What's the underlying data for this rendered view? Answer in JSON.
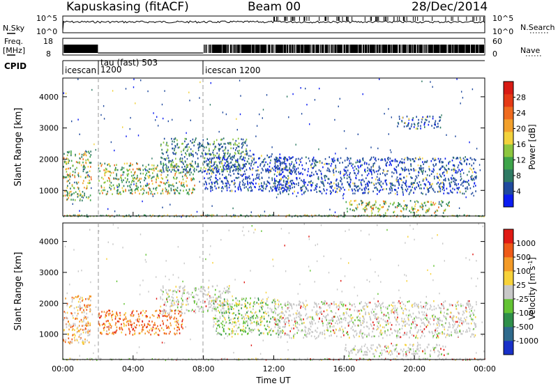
{
  "header": {
    "site": "Kapuskasing (fitACF)",
    "beam": "Beam 00",
    "date": "28/Dec/2014"
  },
  "strips": {
    "nsky_label": "N.Sky",
    "nsky_top": "10^5",
    "nsky_bottom": "10^0",
    "nsearch_label": "N.Search",
    "nsearch_top": "10^5",
    "nsearch_bottom": "10^0",
    "freq_label": "Freq.",
    "freq_unit": "[MHz]",
    "freq_top": "18",
    "freq_bottom": "8",
    "nave_label": "Nave",
    "nave_top": "60",
    "nave_bottom": "0",
    "cpid_label": "CPID",
    "cpid_segments": [
      {
        "label": "icescan",
        "start_h": 0.0
      },
      {
        "label": "1200",
        "start_h": 1.0
      },
      {
        "label": "tau (fast) 503",
        "start_h": 2.0
      },
      {
        "label": "icescan 1200",
        "start_h": 8.0
      }
    ]
  },
  "chart_data": [
    {
      "type": "heatmap",
      "panel": "power",
      "ylabel": "Slant Range [km]",
      "ylim": [
        180,
        4600
      ],
      "yticks": [
        "1000",
        "2000",
        "3000",
        "4000"
      ],
      "xlim": [
        0,
        24
      ],
      "colorbar_label": "Power [dB]",
      "colorbar_ticks": [
        "4",
        "8",
        "12",
        "16",
        "20",
        "24",
        "28"
      ],
      "colorbar_colors": [
        "#0b1cf2",
        "#204a9e",
        "#2f7a63",
        "#3ea44a",
        "#8dc63f",
        "#f2d23c",
        "#f2a02c",
        "#ef6b1f",
        "#e53a16",
        "#d81b14"
      ],
      "regions": [
        {
          "t0": 0.0,
          "t1": 1.6,
          "r0": 700,
          "r1": 2300,
          "level": "high"
        },
        {
          "t0": 2.0,
          "t1": 7.5,
          "r0": 900,
          "r1": 1900,
          "level": "high"
        },
        {
          "t0": 5.5,
          "t1": 10.5,
          "r0": 1600,
          "r1": 2700,
          "level": "mid"
        },
        {
          "t0": 8.0,
          "t1": 13.0,
          "r0": 1000,
          "r1": 2200,
          "level": "low"
        },
        {
          "t0": 12.0,
          "t1": 23.5,
          "r0": 900,
          "r1": 2100,
          "level": "low"
        },
        {
          "t0": 16.0,
          "t1": 22.0,
          "r0": 300,
          "r1": 700,
          "level": "high"
        },
        {
          "t0": 19.0,
          "t1": 21.5,
          "r0": 3000,
          "r1": 3400,
          "level": "low"
        }
      ]
    },
    {
      "type": "heatmap",
      "panel": "velocity",
      "ylabel": "Slant Range [km]",
      "xlabel": "Time UT",
      "ylim": [
        180,
        4600
      ],
      "yticks": [
        "1000",
        "2000",
        "3000",
        "4000"
      ],
      "xticks": [
        "00:00",
        "04:00",
        "08:00",
        "12:00",
        "16:00",
        "20:00",
        "00:00"
      ],
      "xlim": [
        0,
        24
      ],
      "colorbar_label": "Velocity [m s",
      "colorbar_label_sup": "-1",
      "colorbar_label_tail": "]",
      "colorbar_ticks": [
        "1000",
        "500",
        "100",
        "25",
        "-25",
        "-100",
        "-500",
        "-1000"
      ],
      "colorbar_colors": [
        "#1830c8",
        "#2f6a8c",
        "#2f8f4a",
        "#63c334",
        "#c8c8c8",
        "#f7d23a",
        "#f39a27",
        "#ee5a18",
        "#e01a14"
      ],
      "regions": [
        {
          "t0": 0.0,
          "t1": 1.6,
          "r0": 700,
          "r1": 2300,
          "level": "neg_mid"
        },
        {
          "t0": 2.0,
          "t1": 6.8,
          "r0": 1000,
          "r1": 1800,
          "level": "neg_high"
        },
        {
          "t0": 5.5,
          "t1": 9.5,
          "r0": 1700,
          "r1": 2600,
          "level": "ground"
        },
        {
          "t0": 8.5,
          "t1": 12.5,
          "r0": 1000,
          "r1": 2200,
          "level": "pos_low"
        },
        {
          "t0": 12.0,
          "t1": 23.5,
          "r0": 900,
          "r1": 2100,
          "level": "ground"
        },
        {
          "t0": 16.0,
          "t1": 22.0,
          "r0": 300,
          "r1": 700,
          "level": "ground"
        }
      ]
    }
  ]
}
